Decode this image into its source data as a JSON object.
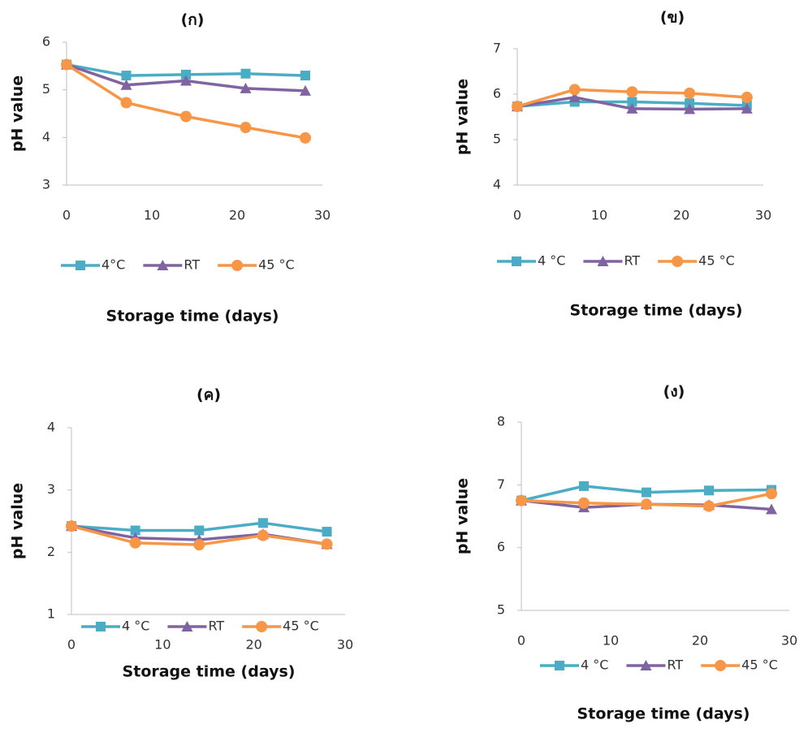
{
  "chart_data": [
    {
      "type": "line",
      "title": "(ก)",
      "x_label": "Storage time (days)",
      "y_label": "pH value",
      "x": [
        0,
        7,
        14,
        21,
        28
      ],
      "xlim": [
        0,
        30
      ],
      "xticks": [
        0,
        10,
        20,
        30
      ],
      "ylim": [
        3,
        6
      ],
      "yticks": [
        3,
        4,
        5,
        6
      ],
      "grid": false,
      "series": [
        {
          "name": "4°C",
          "color": "#4bacc6",
          "marker": "square",
          "values": [
            5.53,
            5.3,
            5.32,
            5.34,
            5.3
          ]
        },
        {
          "name": "RT",
          "color": "#8064a2",
          "marker": "triangle",
          "values": [
            5.53,
            5.1,
            5.19,
            5.03,
            4.98
          ]
        },
        {
          "name": "45 °C",
          "color": "#f79646",
          "marker": "circle",
          "values": [
            5.53,
            4.73,
            4.44,
            4.21,
            3.99
          ]
        }
      ]
    },
    {
      "type": "line",
      "title": "(ข)",
      "x_label": "Storage time (days)",
      "y_label": "pH value",
      "x": [
        0,
        7,
        14,
        21,
        28
      ],
      "xlim": [
        0,
        30
      ],
      "xticks": [
        0,
        10,
        20,
        30
      ],
      "ylim": [
        4,
        7
      ],
      "yticks": [
        4,
        5,
        6,
        7
      ],
      "grid": false,
      "series": [
        {
          "name": "4 °C",
          "color": "#4bacc6",
          "marker": "square",
          "values": [
            5.73,
            5.83,
            5.83,
            5.8,
            5.75
          ]
        },
        {
          "name": "RT",
          "color": "#8064a2",
          "marker": "triangle",
          "values": [
            5.73,
            5.93,
            5.68,
            5.67,
            5.68
          ]
        },
        {
          "name": "45 °C",
          "color": "#f79646",
          "marker": "circle",
          "values": [
            5.73,
            6.1,
            6.05,
            6.02,
            5.93
          ]
        }
      ]
    },
    {
      "type": "line",
      "title": "(ค)",
      "x_label": "Storage time (days)",
      "y_label": "pH value",
      "x": [
        0,
        7,
        14,
        21,
        28
      ],
      "xlim": [
        0,
        30
      ],
      "xticks": [
        0,
        10,
        20,
        30
      ],
      "ylim": [
        1,
        4
      ],
      "yticks": [
        1,
        2,
        3,
        4
      ],
      "grid": false,
      "series": [
        {
          "name": "4 °C",
          "color": "#4bacc6",
          "marker": "square",
          "values": [
            2.42,
            2.35,
            2.35,
            2.47,
            2.33
          ]
        },
        {
          "name": "RT",
          "color": "#8064a2",
          "marker": "triangle",
          "values": [
            2.42,
            2.23,
            2.2,
            2.29,
            2.13
          ]
        },
        {
          "name": "45 °C",
          "color": "#f79646",
          "marker": "circle",
          "values": [
            2.42,
            2.15,
            2.12,
            2.27,
            2.13
          ]
        }
      ]
    },
    {
      "type": "line",
      "title": "(ง)",
      "x_label": "Storage time (days)",
      "y_label": "pH value",
      "x": [
        0,
        7,
        14,
        21,
        28
      ],
      "xlim": [
        0,
        30
      ],
      "xticks": [
        0,
        10,
        20,
        30
      ],
      "ylim": [
        5,
        8
      ],
      "yticks": [
        5,
        6,
        7,
        8
      ],
      "grid": false,
      "series": [
        {
          "name": "4 °C",
          "color": "#4bacc6",
          "marker": "square",
          "values": [
            6.75,
            6.98,
            6.88,
            6.91,
            6.92
          ]
        },
        {
          "name": "RT",
          "color": "#8064a2",
          "marker": "triangle",
          "values": [
            6.75,
            6.64,
            6.69,
            6.68,
            6.61
          ]
        },
        {
          "name": "45 °C",
          "color": "#f79646",
          "marker": "circle",
          "values": [
            6.75,
            6.71,
            6.69,
            6.66,
            6.86
          ]
        }
      ]
    }
  ]
}
